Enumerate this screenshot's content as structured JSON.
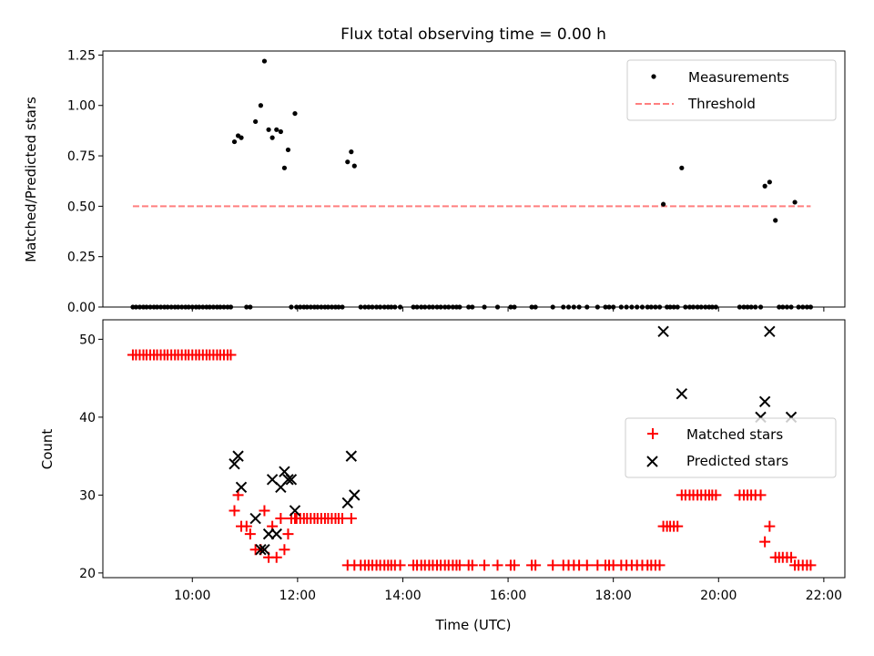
{
  "title": "Flux total observing time = 0.00 h",
  "colors": {
    "measure": "#000000",
    "threshold": "#ff7f7f",
    "matched": "#ff0000",
    "predicted": "#000000"
  },
  "chart_data": [
    {
      "type": "scatter",
      "ylabel": "Matched/Predicted stars",
      "ylim": [
        0,
        1.27
      ],
      "yticks": [
        0,
        0.25,
        0.5,
        0.75,
        1.0,
        1.25
      ],
      "ytick_labels": [
        "0.00",
        "0.25",
        "0.50",
        "0.75",
        "1.00",
        "1.25"
      ],
      "xlim": [
        8.3,
        22.4
      ],
      "xticks": [
        10,
        12,
        14,
        16,
        18,
        20,
        22
      ],
      "legend": "top-right",
      "series": [
        {
          "name": "Measurements",
          "marker": "dot",
          "x": [
            8.87,
            8.93,
            9.0,
            9.07,
            9.13,
            9.2,
            9.27,
            9.33,
            9.4,
            9.47,
            9.53,
            9.6,
            9.67,
            9.73,
            9.8,
            9.87,
            9.93,
            10.0,
            10.07,
            10.13,
            10.2,
            10.27,
            10.33,
            10.4,
            10.47,
            10.53,
            10.6,
            10.67,
            10.73,
            10.8,
            10.87,
            10.93,
            11.03,
            11.1,
            11.2,
            11.3,
            11.37,
            11.45,
            11.52,
            11.6,
            11.68,
            11.75,
            11.82,
            11.88,
            11.95,
            11.98,
            12.05,
            12.12,
            12.18,
            12.25,
            12.32,
            12.38,
            12.45,
            12.52,
            12.58,
            12.65,
            12.72,
            12.78,
            12.85,
            12.95,
            13.02,
            13.08,
            13.2,
            13.28,
            13.35,
            13.42,
            13.5,
            13.57,
            13.65,
            13.72,
            13.78,
            13.85,
            13.95,
            14.2,
            14.27,
            14.35,
            14.42,
            14.5,
            14.57,
            14.65,
            14.72,
            14.8,
            14.87,
            14.95,
            15.02,
            15.08,
            15.25,
            15.32,
            15.55,
            15.8,
            16.05,
            16.12,
            16.45,
            16.52,
            16.85,
            17.05,
            17.15,
            17.25,
            17.35,
            17.5,
            17.7,
            17.85,
            17.92,
            18.0,
            18.15,
            18.25,
            18.35,
            18.45,
            18.55,
            18.65,
            18.72,
            18.8,
            18.88,
            18.95,
            19.02,
            19.08,
            19.15,
            19.22,
            19.3,
            19.37,
            19.45,
            19.52,
            19.6,
            19.67,
            19.75,
            19.82,
            19.88,
            19.95,
            20.4,
            20.48,
            20.55,
            20.62,
            20.7,
            20.8,
            20.88,
            20.97,
            21.08,
            21.15,
            21.22,
            21.3,
            21.38,
            21.45,
            21.52,
            21.6,
            21.68,
            21.75
          ],
          "y": [
            0,
            0,
            0,
            0,
            0,
            0,
            0,
            0,
            0,
            0,
            0,
            0,
            0,
            0,
            0,
            0,
            0,
            0,
            0,
            0,
            0,
            0,
            0,
            0,
            0,
            0,
            0,
            0,
            0,
            0.82,
            0.85,
            0.84,
            0,
            0,
            0.92,
            1.0,
            1.22,
            0.88,
            0.84,
            0.88,
            0.87,
            0.69,
            0.78,
            0,
            0.96,
            0,
            0,
            0,
            0,
            0,
            0,
            0,
            0,
            0,
            0,
            0,
            0,
            0,
            0,
            0.72,
            0.77,
            0.7,
            0,
            0,
            0,
            0,
            0,
            0,
            0,
            0,
            0,
            0,
            0,
            0,
            0,
            0,
            0,
            0,
            0,
            0,
            0,
            0,
            0,
            0,
            0,
            0,
            0,
            0,
            0,
            0,
            0,
            0,
            0,
            0,
            0,
            0,
            0,
            0,
            0,
            0,
            0,
            0,
            0,
            0,
            0,
            0,
            0,
            0,
            0,
            0,
            0,
            0,
            0,
            0.51,
            0,
            0,
            0,
            0,
            0.69,
            0,
            0,
            0,
            0,
            0,
            0,
            0,
            0,
            0,
            0,
            0,
            0,
            0,
            0,
            0,
            0.6,
            0.62,
            0.43,
            0,
            0,
            0,
            0,
            0.52,
            0,
            0,
            0,
            0
          ]
        },
        {
          "name": "Threshold",
          "marker": "dashed-line",
          "x": [
            8.87,
            21.75
          ],
          "y": [
            0.5,
            0.5
          ]
        }
      ]
    },
    {
      "type": "scatter",
      "xlabel": "Time (UTC)",
      "ylabel": "Count",
      "ylim": [
        19.4,
        52.5
      ],
      "yticks": [
        20,
        30,
        40,
        50
      ],
      "ytick_labels": [
        "20",
        "30",
        "40",
        "50"
      ],
      "xlim": [
        8.3,
        22.4
      ],
      "xticks": [
        10,
        12,
        14,
        16,
        18,
        20,
        22
      ],
      "xtick_labels": [
        "10:00",
        "12:00",
        "14:00",
        "16:00",
        "18:00",
        "20:00",
        "22:00"
      ],
      "legend": "right",
      "series": [
        {
          "name": "Matched stars",
          "marker": "plus",
          "x": [
            8.87,
            8.93,
            9.0,
            9.07,
            9.13,
            9.2,
            9.27,
            9.33,
            9.4,
            9.47,
            9.53,
            9.6,
            9.67,
            9.73,
            9.8,
            9.87,
            9.93,
            10.0,
            10.07,
            10.13,
            10.2,
            10.27,
            10.33,
            10.4,
            10.47,
            10.53,
            10.6,
            10.67,
            10.73,
            10.8,
            10.87,
            10.93,
            11.03,
            11.1,
            11.2,
            11.3,
            11.37,
            11.45,
            11.52,
            11.6,
            11.68,
            11.75,
            11.82,
            11.88,
            11.95,
            11.98,
            12.05,
            12.12,
            12.18,
            12.25,
            12.32,
            12.38,
            12.45,
            12.52,
            12.58,
            12.65,
            12.72,
            12.78,
            12.85,
            12.95,
            13.02,
            13.08,
            13.2,
            13.28,
            13.35,
            13.42,
            13.5,
            13.57,
            13.65,
            13.72,
            13.78,
            13.85,
            13.95,
            14.2,
            14.27,
            14.35,
            14.42,
            14.5,
            14.57,
            14.65,
            14.72,
            14.8,
            14.87,
            14.95,
            15.02,
            15.08,
            15.25,
            15.32,
            15.55,
            15.8,
            16.05,
            16.12,
            16.45,
            16.52,
            16.85,
            17.05,
            17.15,
            17.25,
            17.35,
            17.5,
            17.7,
            17.85,
            17.92,
            18.0,
            18.15,
            18.25,
            18.35,
            18.45,
            18.55,
            18.65,
            18.72,
            18.8,
            18.88,
            18.95,
            19.02,
            19.08,
            19.15,
            19.22,
            19.3,
            19.37,
            19.45,
            19.52,
            19.6,
            19.67,
            19.75,
            19.82,
            19.88,
            19.95,
            20.4,
            20.48,
            20.55,
            20.62,
            20.7,
            20.8,
            20.88,
            20.97,
            21.08,
            21.15,
            21.22,
            21.3,
            21.38,
            21.45,
            21.52,
            21.6,
            21.68,
            21.75
          ],
          "y": [
            48,
            48,
            48,
            48,
            48,
            48,
            48,
            48,
            48,
            48,
            48,
            48,
            48,
            48,
            48,
            48,
            48,
            48,
            48,
            48,
            48,
            48,
            48,
            48,
            48,
            48,
            48,
            48,
            48,
            28,
            30,
            26,
            26,
            25,
            23,
            23,
            28,
            22,
            26,
            22,
            27,
            23,
            25,
            27,
            27,
            27,
            27,
            27,
            27,
            27,
            27,
            27,
            27,
            27,
            27,
            27,
            27,
            27,
            27,
            21,
            27,
            21,
            21,
            21,
            21,
            21,
            21,
            21,
            21,
            21,
            21,
            21,
            21,
            21,
            21,
            21,
            21,
            21,
            21,
            21,
            21,
            21,
            21,
            21,
            21,
            21,
            21,
            21,
            21,
            21,
            21,
            21,
            21,
            21,
            21,
            21,
            21,
            21,
            21,
            21,
            21,
            21,
            21,
            21,
            21,
            21,
            21,
            21,
            21,
            21,
            21,
            21,
            21,
            26,
            26,
            26,
            26,
            26,
            30,
            30,
            30,
            30,
            30,
            30,
            30,
            30,
            30,
            30,
            30,
            30,
            30,
            30,
            30,
            30,
            24,
            26,
            22,
            22,
            22,
            22,
            22,
            21,
            21,
            21,
            21,
            21
          ]
        },
        {
          "name": "Predicted stars",
          "marker": "x",
          "x": [
            10.8,
            10.87,
            10.93,
            11.2,
            11.3,
            11.37,
            11.45,
            11.52,
            11.6,
            11.68,
            11.75,
            11.82,
            11.88,
            11.95,
            12.95,
            13.02,
            13.08,
            18.95,
            19.3,
            20.8,
            20.88,
            20.97,
            21.38
          ],
          "y": [
            34,
            35,
            31,
            27,
            23,
            23,
            25,
            32,
            25,
            31,
            33,
            32,
            32,
            28,
            29,
            35,
            30,
            51,
            43,
            40,
            42,
            51,
            40
          ]
        }
      ]
    }
  ]
}
